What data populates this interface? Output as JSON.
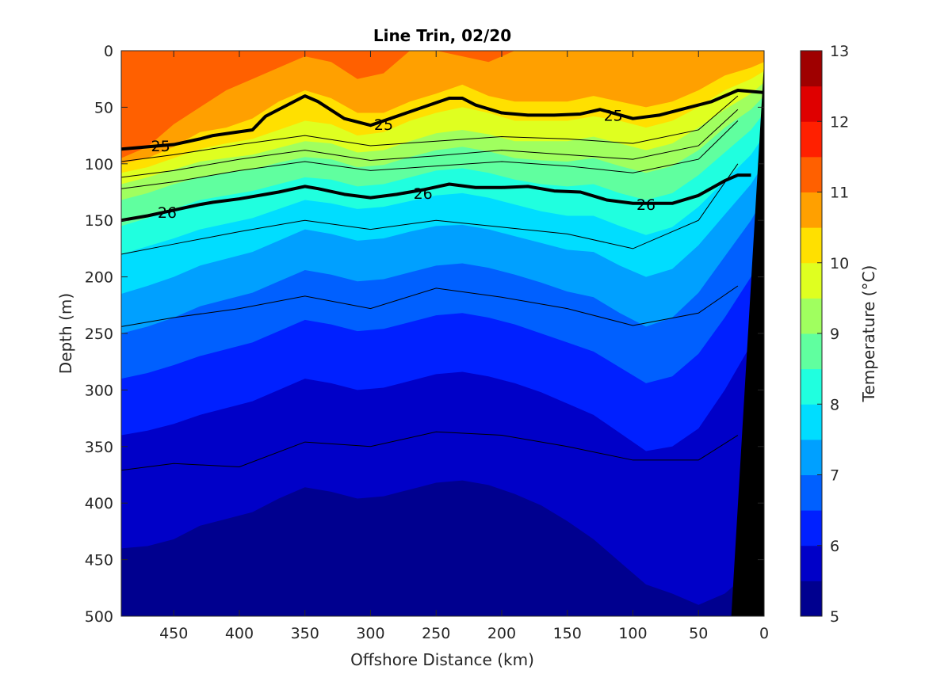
{
  "chart_data": {
    "type": "contour",
    "title": "Line Trin, 02/20",
    "xlabel": "Offshore Distance (km)",
    "ylabel": "Depth (m)",
    "xlim": [
      490,
      0
    ],
    "ylim": [
      0,
      500
    ],
    "x_reversed": true,
    "y_reversed": true,
    "x_ticks": [
      "450",
      "400",
      "350",
      "300",
      "250",
      "200",
      "150",
      "100",
      "50",
      "0"
    ],
    "y_ticks": [
      "0",
      "50",
      "100",
      "150",
      "200",
      "250",
      "300",
      "350",
      "400",
      "450",
      "500"
    ],
    "colorbar": {
      "label": "Temperature (°C)",
      "ticks": [
        "5",
        "6",
        "7",
        "8",
        "9",
        "10",
        "11",
        "12",
        "13"
      ],
      "range": [
        5,
        13
      ],
      "step": 0.5,
      "colors": [
        "#00008f",
        "#0000c8",
        "#0020ff",
        "#0060ff",
        "#00a0ff",
        "#00ddff",
        "#20ffdf",
        "#60ff9f",
        "#a0ff5f",
        "#dfff20",
        "#ffe000",
        "#ffa000",
        "#ff6000",
        "#ff2000",
        "#df0000",
        "#9f0000"
      ]
    },
    "x_samples": [
      490,
      470,
      450,
      430,
      410,
      390,
      370,
      350,
      330,
      310,
      290,
      270,
      250,
      230,
      210,
      190,
      170,
      150,
      130,
      110,
      90,
      70,
      50,
      30,
      10,
      0
    ],
    "isotherms": [
      {
        "temp": 11.5,
        "depth": [
          0,
          0,
          0,
          0,
          0,
          0,
          0,
          0,
          0,
          0,
          0,
          0,
          0,
          0,
          0,
          0,
          0,
          0,
          0,
          0,
          0,
          0,
          0,
          0,
          0,
          0
        ]
      },
      {
        "temp": 11.0,
        "depth": [
          95,
          85,
          65,
          50,
          35,
          25,
          15,
          5,
          10,
          25,
          20,
          0,
          0,
          5,
          10,
          0,
          0,
          0,
          0,
          0,
          0,
          0,
          0,
          0,
          0,
          0
        ]
      },
      {
        "temp": 10.5,
        "depth": [
          100,
          95,
          85,
          72,
          68,
          60,
          45,
          35,
          42,
          55,
          55,
          45,
          38,
          30,
          40,
          45,
          45,
          45,
          40,
          45,
          50,
          45,
          35,
          22,
          15,
          10
        ]
      },
      {
        "temp": 10.0,
        "depth": [
          108,
          103,
          95,
          87,
          82,
          78,
          70,
          62,
          65,
          75,
          72,
          62,
          55,
          50,
          55,
          62,
          62,
          62,
          58,
          62,
          68,
          62,
          50,
          35,
          25,
          18
        ]
      },
      {
        "temp": 9.5,
        "depth": [
          118,
          112,
          105,
          98,
          95,
          92,
          86,
          80,
          82,
          90,
          88,
          80,
          73,
          70,
          74,
          80,
          80,
          80,
          76,
          82,
          88,
          82,
          68,
          52,
          38,
          28
        ]
      },
      {
        "temp": 9.0,
        "depth": [
          132,
          126,
          118,
          112,
          108,
          105,
          99,
          94,
          96,
          103,
          101,
          94,
          88,
          85,
          89,
          95,
          97,
          98,
          95,
          102,
          108,
          102,
          88,
          68,
          52,
          40
        ]
      },
      {
        "temp": 8.5,
        "depth": [
          155,
          148,
          140,
          132,
          128,
          124,
          118,
          112,
          114,
          120,
          118,
          112,
          106,
          104,
          108,
          114,
          118,
          120,
          118,
          126,
          132,
          126,
          110,
          90,
          70,
          55
        ]
      },
      {
        "temp": 8.0,
        "depth": [
          180,
          173,
          166,
          158,
          153,
          148,
          140,
          132,
          135,
          140,
          138,
          133,
          128,
          126,
          130,
          136,
          142,
          146,
          146,
          155,
          163,
          156,
          138,
          115,
          92,
          75
        ]
      },
      {
        "temp": 7.5,
        "depth": [
          215,
          208,
          200,
          190,
          184,
          178,
          168,
          158,
          162,
          168,
          166,
          160,
          155,
          154,
          158,
          164,
          170,
          176,
          178,
          190,
          200,
          193,
          172,
          145,
          118,
          100
        ]
      },
      {
        "temp": 7.0,
        "depth": [
          250,
          244,
          236,
          226,
          220,
          214,
          204,
          194,
          198,
          204,
          202,
          196,
          190,
          188,
          192,
          198,
          205,
          213,
          218,
          232,
          244,
          236,
          214,
          182,
          150,
          130
        ]
      },
      {
        "temp": 6.5,
        "depth": [
          290,
          285,
          278,
          270,
          264,
          258,
          248,
          238,
          242,
          248,
          246,
          240,
          234,
          232,
          236,
          242,
          250,
          258,
          266,
          280,
          294,
          288,
          268,
          236,
          200,
          180
        ]
      },
      {
        "temp": 6.0,
        "depth": [
          340,
          336,
          330,
          322,
          316,
          310,
          300,
          290,
          294,
          300,
          298,
          292,
          286,
          284,
          288,
          294,
          302,
          312,
          322,
          338,
          354,
          350,
          334,
          300,
          260,
          240
        ]
      },
      {
        "temp": 5.5,
        "depth": [
          440,
          438,
          432,
          420,
          414,
          408,
          396,
          386,
          390,
          396,
          394,
          388,
          382,
          380,
          384,
          392,
          402,
          416,
          432,
          452,
          472,
          480,
          490,
          480,
          460,
          450
        ]
      }
    ],
    "thin_lines": [
      {
        "x": [
          490,
          450,
          400,
          350,
          300,
          250,
          200,
          150,
          100,
          50,
          20
        ],
        "depth": [
          98,
          92,
          83,
          75,
          84,
          80,
          76,
          78,
          82,
          70,
          40
        ]
      },
      {
        "x": [
          490,
          450,
          400,
          350,
          300,
          250,
          200,
          150,
          100,
          50,
          20
        ],
        "depth": [
          112,
          106,
          96,
          88,
          97,
          93,
          88,
          92,
          96,
          84,
          52
        ]
      },
      {
        "x": [
          490,
          450,
          400,
          350,
          300,
          250,
          200,
          150,
          100,
          50,
          20
        ],
        "depth": [
          122,
          116,
          106,
          98,
          106,
          102,
          98,
          102,
          108,
          96,
          62
        ]
      },
      {
        "x": [
          490,
          450,
          400,
          350,
          300,
          250,
          200,
          150,
          100,
          50,
          20
        ],
        "depth": [
          180,
          171,
          160,
          150,
          158,
          150,
          156,
          162,
          175,
          150,
          100
        ]
      },
      {
        "x": [
          490,
          450,
          400,
          350,
          300,
          250,
          200,
          150,
          100,
          50,
          20
        ],
        "depth": [
          244,
          236,
          228,
          217,
          228,
          210,
          218,
          228,
          243,
          232,
          208
        ]
      },
      {
        "x": [
          490,
          450,
          400,
          350,
          300,
          250,
          200,
          150,
          100,
          50,
          20
        ],
        "depth": [
          371,
          365,
          368,
          346,
          350,
          337,
          340,
          350,
          362,
          362,
          340
        ]
      }
    ],
    "density_contours": [
      {
        "label": "25",
        "x": [
          490,
          470,
          450,
          430,
          420,
          390,
          380,
          370,
          350,
          340,
          320,
          300,
          280,
          260,
          240,
          230,
          220,
          200,
          180,
          160,
          140,
          125,
          100,
          80,
          60,
          40,
          20,
          0
        ],
        "depth": [
          87,
          85,
          83,
          78,
          75,
          70,
          58,
          52,
          40,
          45,
          60,
          66,
          58,
          50,
          42,
          42,
          48,
          55,
          57,
          57,
          56,
          52,
          60,
          57,
          51,
          45,
          35,
          37
        ]
      },
      {
        "label": "26",
        "x": [
          490,
          470,
          450,
          430,
          420,
          400,
          380,
          370,
          350,
          340,
          320,
          300,
          280,
          260,
          240,
          220,
          200,
          180,
          160,
          140,
          120,
          100,
          80,
          70,
          50,
          30,
          20,
          10
        ],
        "depth": [
          150,
          146,
          141,
          136,
          134,
          131,
          127,
          125,
          120,
          122,
          127,
          130,
          127,
          123,
          118,
          121,
          121,
          120,
          124,
          125,
          132,
          135,
          135,
          135,
          128,
          115,
          110,
          110
        ]
      }
    ],
    "density_labels": [
      {
        "text": "25",
        "x": 460,
        "depth": 84
      },
      {
        "text": "25",
        "x": 290,
        "depth": 65
      },
      {
        "text": "25",
        "x": 115,
        "depth": 57
      },
      {
        "text": "26",
        "x": 455,
        "depth": 143
      },
      {
        "text": "26",
        "x": 260,
        "depth": 126
      },
      {
        "text": "26",
        "x": 90,
        "depth": 136
      }
    ],
    "bottom": {
      "x": [
        0,
        25,
        26,
        0
      ],
      "depth": [
        10,
        500,
        500,
        500
      ]
    }
  }
}
